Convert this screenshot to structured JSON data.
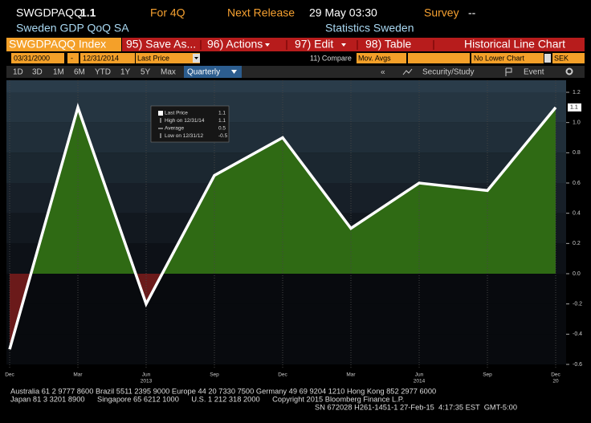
{
  "header": {
    "ticker": "SWGDPAQQ",
    "last": "1.1",
    "period": "For 4Q",
    "release_label": "Next Release",
    "release_date": "29 May 03:30",
    "survey_label": "Survey",
    "survey_value": "--",
    "name": "Sweden GDP QoQ SA",
    "source": "Statistics Sweden"
  },
  "toolbar": {
    "security": "SWGDPAQQ Index",
    "buttons": [
      "95) Save As...",
      "96) Actions",
      "97) Edit",
      "98) Table"
    ],
    "chart_title": "Historical Line Chart"
  },
  "settings": {
    "start": "03/31/2000",
    "separator": "-",
    "end": "12/31/2014",
    "field": "Last Price",
    "compare": "11) Compare",
    "mov_avgs": "Mov. Avgs",
    "lower": "No Lower Chart",
    "currency": "SEK"
  },
  "tabs": {
    "ranges": [
      "1D",
      "3D",
      "1M",
      "6M",
      "YTD",
      "1Y",
      "5Y",
      "Max"
    ],
    "frequency": "Quarterly",
    "collapse": "«",
    "study": "Security/Study",
    "event": "Event"
  },
  "chart_data": {
    "type": "line",
    "categories": [
      "Dec",
      "Mar",
      "Jun",
      "Sep",
      "Dec",
      "Mar",
      "Jun",
      "Sep",
      "Dec"
    ],
    "years": [
      null,
      null,
      "2013",
      null,
      null,
      null,
      "2014",
      null,
      "20"
    ],
    "values": [
      -0.5,
      1.1,
      -0.2,
      0.65,
      0.9,
      0.3,
      0.6,
      0.55,
      1.1
    ],
    "color": "#ffffff",
    "fill_above": "#2f6a14",
    "fill_below": "#6b1a1a",
    "ylim": [
      -0.6,
      1.2
    ],
    "yticks": [
      -0.6,
      -0.4,
      -0.2,
      {
        "value": 0,
        "label": "0.0"
      },
      0.2,
      0.4,
      0.6,
      0.8,
      {
        "value": 1,
        "label": "1.0"
      },
      1.2
    ],
    "legend_stats": [
      {
        "label": "Last Price",
        "value": 1.1
      },
      {
        "label": "High on 12/31/14",
        "value": 1.1
      },
      {
        "label": "Average",
        "value": 0.5
      },
      {
        "label": "Low on 12/31/12",
        "value": -0.5
      }
    ]
  },
  "footer": {
    "lines": [
      "Australia 61 2 9777 8600 Brazil 5511 2395 9000 Europe 44 20 7330 7500 Germany 49 69 9204 1210 Hong Kong 852 2977 6000",
      "Japan 81 3 3201 8900      Singapore 65 6212 1000      U.S. 1 212 318 2000      Copyright 2015 Bloomberg Finance L.P.",
      "SN 672028 H261-1451-1 27-Feb-15  4:17:35 EST  GMT-5:00"
    ]
  }
}
